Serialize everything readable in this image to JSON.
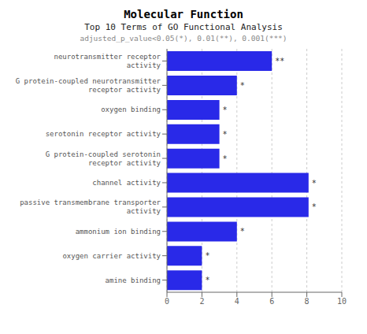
{
  "chart_data": {
    "type": "bar",
    "orientation": "horizontal",
    "title": "Molecular Function",
    "subtitle": [
      "Top 10 Terms of GO Functional Analysis",
      "adjusted_p_value<0.05(*), 0.01(**), 0.001(***)"
    ],
    "categories": [
      "neurotransmitter receptor\nactivity",
      "G protein-coupled neurotransmitter\nreceptor activity",
      "oxygen binding",
      "serotonin receptor activity",
      "G protein-coupled serotonin\nreceptor activity",
      "channel activity",
      "passive transmembrane transporter\nactivity",
      "ammonium ion binding",
      "oxygen carrier activity",
      "amine binding"
    ],
    "values": [
      6.0,
      4.0,
      3.0,
      3.0,
      3.0,
      8.1,
      8.1,
      4.0,
      2.0,
      2.0
    ],
    "annotations": [
      "**",
      "*",
      "*",
      "*",
      "*",
      "*",
      "*",
      "*",
      "*",
      "*"
    ],
    "color": "#2929e8",
    "xlim": [
      0,
      10
    ],
    "xticks": [
      0,
      2,
      4,
      6,
      8,
      10
    ],
    "grid": true
  }
}
